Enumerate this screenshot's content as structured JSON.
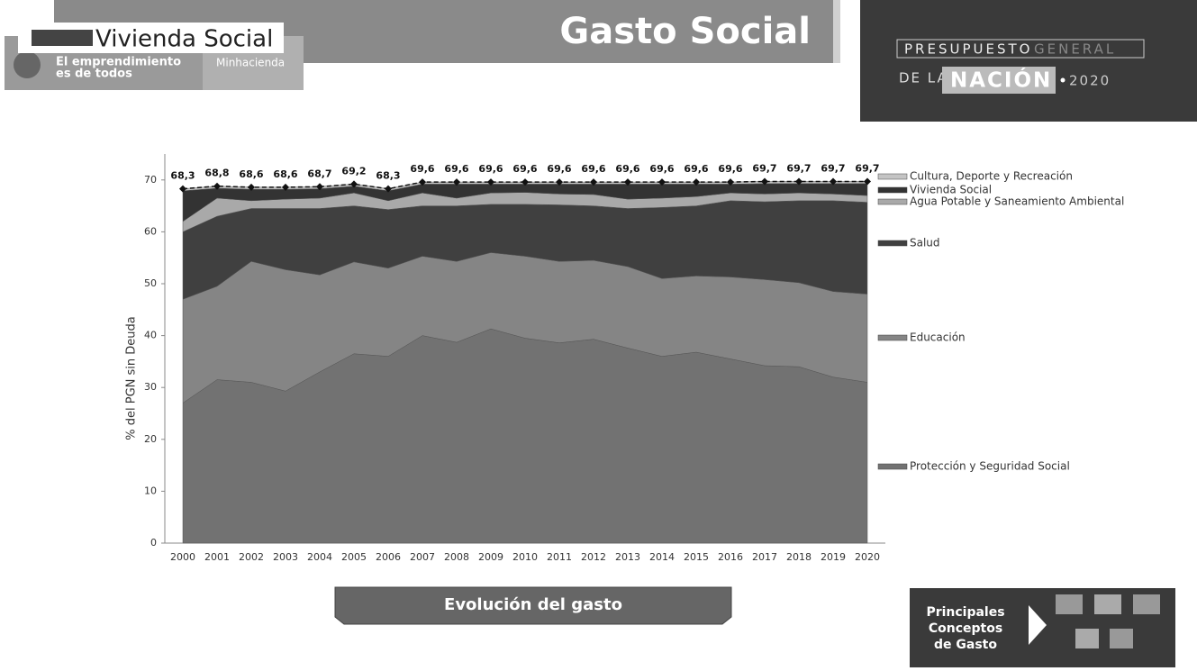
{
  "header": {
    "section": "Vivienda Social",
    "slogan": [
      "El emprendimiento",
      "es de todos"
    ],
    "ministry": "Minhacienda",
    "title": "Gasto Social",
    "badge": {
      "line1a": "PRESUPUESTO",
      "line1b": "GENERAL",
      "line2a": "DE LA",
      "line2b": "NACIÓN",
      "year": "2020"
    }
  },
  "chart_data": {
    "type": "area",
    "stacked": true,
    "y_label": "% del PGN sin Deuda",
    "categories": [
      "2000",
      "2001",
      "2002",
      "2003",
      "2004",
      "2005",
      "2006",
      "2007",
      "2008",
      "2009",
      "2010",
      "2011",
      "2012",
      "2013",
      "2014",
      "2015",
      "2016",
      "2017",
      "2018",
      "2019",
      "2020"
    ],
    "ylim": [
      0,
      75
    ],
    "yticks": [
      0,
      10,
      20,
      30,
      40,
      50,
      60,
      70
    ],
    "series": [
      {
        "name": "Protección y Seguridad Social",
        "color": "#727272",
        "values": [
          27,
          31.5,
          31,
          29.3,
          33,
          36.5,
          36,
          40,
          38.7,
          41.3,
          39.5,
          38.6,
          39.3,
          37.6,
          36,
          36.8,
          35.5,
          34.2,
          34,
          32,
          31
        ]
      },
      {
        "name": "Educación",
        "color": "#858585",
        "values": [
          20,
          18,
          23.3,
          23.4,
          18.7,
          17.7,
          17,
          15.3,
          15.6,
          14.7,
          15.8,
          15.7,
          15.2,
          15.7,
          15,
          14.7,
          15.8,
          16.6,
          16.2,
          16.5,
          17
        ]
      },
      {
        "name": "Salud",
        "color": "#404040",
        "values": [
          13,
          13.5,
          10.2,
          11.8,
          12.8,
          10.8,
          11.3,
          9.7,
          10.7,
          9.3,
          10,
          10.9,
          10.5,
          11.2,
          13.7,
          13.5,
          14.7,
          15,
          15.8,
          17.5,
          17.7
        ]
      },
      {
        "name": "Agua Potable y Saneamiento Ambiental",
        "color": "#a9a9a9",
        "values": [
          2,
          3.5,
          1.5,
          1.8,
          2,
          2.5,
          1.7,
          2.5,
          1.5,
          2.2,
          2.3,
          2.1,
          2.2,
          1.8,
          1.8,
          1.8,
          1.5,
          1.5,
          1.5,
          1.3,
          1.3
        ]
      },
      {
        "name": "Vivienda Social",
        "color": "#333333",
        "values": [
          5.9,
          1.9,
          2.2,
          1.9,
          1.8,
          1.3,
          1.9,
          1.7,
          2.7,
          1.7,
          1.6,
          1.9,
          2,
          2.9,
          2.7,
          2.4,
          1.7,
          2,
          1.8,
          2,
          2.3
        ]
      },
      {
        "name": "Cultura, Deporte y Recreación",
        "color": "#c4c4c4",
        "values": [
          0.4,
          0.4,
          0.4,
          0.4,
          0.4,
          0.4,
          0.4,
          0.4,
          0.4,
          0.4,
          0.4,
          0.4,
          0.4,
          0.4,
          0.4,
          0.4,
          0.4,
          0.4,
          0.4,
          0.4,
          0.4
        ]
      }
    ],
    "total": {
      "color": "#111111",
      "values": [
        68.3,
        68.8,
        68.6,
        68.6,
        68.7,
        69.2,
        68.3,
        69.6,
        69.6,
        69.6,
        69.6,
        69.6,
        69.6,
        69.6,
        69.6,
        69.6,
        69.6,
        69.7,
        69.7,
        69.7,
        69.7
      ],
      "value_labels": [
        "68,3",
        "68,8",
        "68,6",
        "68,6",
        "68,7",
        "69,2",
        "68,3",
        "69,6",
        "69,6",
        "69,6",
        "69,6",
        "69,6",
        "69,6",
        "69,6",
        "69,6",
        "69,6",
        "69,6",
        "69,7",
        "69,7",
        "69,7",
        "69,7"
      ]
    }
  },
  "footer": {
    "button": "Evolución del gasto",
    "nav": [
      "Principales",
      "Conceptos",
      "de Gasto"
    ]
  }
}
